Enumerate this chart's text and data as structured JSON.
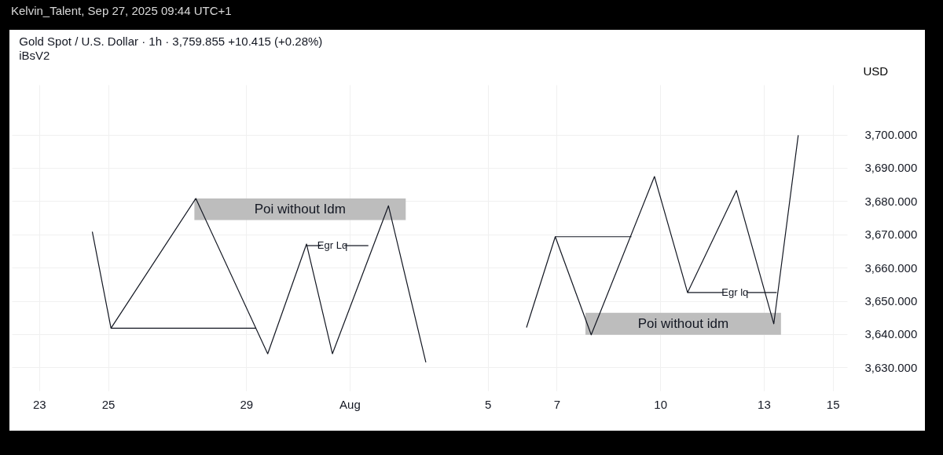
{
  "chart_data": {
    "type": "line",
    "title": "Gold Spot / U.S. Dollar · 1h · 3,759.855 +10.415 (+0.28%)",
    "subtitle": "iBsV2",
    "ylabel": "USD",
    "annotations": [
      "Kelvin_Talent, Sep 27, 2025 09:44 UTC+1",
      "Poi without Idm",
      "Poi without idm",
      {
        "text": "Egr Lq",
        "x": "2025-07-31T12:00",
        "y": 3666.6
      },
      {
        "text": "Egr lq",
        "x": "2025-08-12T04:00",
        "y": 3652.5
      }
    ],
    "series": [
      {
        "type": "area",
        "color": "#bdbdbd",
        "x": [
          "2025-07-27T12:00",
          "2025-08-02T15:00"
        ],
        "values": [
          null,
          null
        ],
        "upper": [
          3680.8,
          3680.8
        ],
        "lower": [
          3674.3,
          3674.3
        ]
      },
      {
        "type": "area",
        "color": "#bdbdbd",
        "x": [
          "2025-08-07T20:00",
          "2025-08-13T12:00"
        ],
        "values": [
          null,
          null
        ],
        "upper": [
          3646.4,
          3646.4
        ],
        "lower": [
          3639.8,
          3639.8
        ]
      },
      {
        "color": "#131722",
        "x": [
          "2025-07-24T13:00",
          "2025-07-25T02:00",
          "2025-07-27T13:00",
          "2025-07-29T15:00",
          "2025-07-30T18:00",
          "2025-07-31T12:00",
          "2025-08-02T03:00",
          "2025-08-03T05:00"
        ],
        "values": [
          3670.8,
          3641.8,
          3680.8,
          3634.1,
          3667.1,
          3634.1,
          3678.6,
          3631.5
        ]
      },
      {
        "color": "#131722",
        "x": [
          "2025-08-06T03:00",
          "2025-08-06T23:00",
          "2025-08-08T00:00",
          "2025-08-09T20:00",
          "2025-08-10T19:00",
          "2025-08-12T05:00",
          "2025-08-13T07:00",
          "2025-08-14T00:00"
        ],
        "values": [
          3642.0,
          3669.3,
          3639.8,
          3687.4,
          3652.5,
          3683.2,
          3643.1,
          3699.8
        ]
      },
      {
        "color": "#131722",
        "x": [
          "2025-07-25T02:00",
          "2025-07-29T07:00"
        ],
        "values": [
          3641.8,
          3641.8
        ]
      },
      {
        "color": "#131722",
        "x": [
          "2025-08-06T23:00",
          "2025-08-09T04:00"
        ],
        "values": [
          3669.3,
          3669.3
        ]
      },
      {
        "color": "#131722",
        "x": [
          "2025-07-30T18:00",
          "2025-08-01T13:00"
        ],
        "values": [
          3666.6,
          3666.6
        ]
      },
      {
        "color": "#131722",
        "x": [
          "2025-08-10T19:00",
          "2025-08-13T09:00"
        ],
        "values": [
          3652.5,
          3652.5
        ]
      }
    ],
    "xlim": [
      "2025-07-22T05:00",
      "2025-08-15T10:00"
    ],
    "xticks": [
      {
        "value": "2025-07-23",
        "label": "23"
      },
      {
        "value": "2025-07-25",
        "label": "25"
      },
      {
        "value": "2025-07-29",
        "label": "29"
      },
      {
        "value": "2025-08-01",
        "label": "Aug"
      },
      {
        "value": "2025-08-05",
        "label": "5"
      },
      {
        "value": "2025-08-07",
        "label": "7"
      },
      {
        "value": "2025-08-10",
        "label": "10"
      },
      {
        "value": "2025-08-13",
        "label": "13"
      },
      {
        "value": "2025-08-15",
        "label": "15"
      }
    ],
    "ylim": [
      3623,
      3715
    ],
    "yticks": [
      {
        "value": 3630,
        "label": "3,630.000"
      },
      {
        "value": 3640,
        "label": "3,640.000"
      },
      {
        "value": 3650,
        "label": "3,650.000"
      },
      {
        "value": 3660,
        "label": "3,660.000"
      },
      {
        "value": 3670,
        "label": "3,670.000"
      },
      {
        "value": 3680,
        "label": "3,680.000"
      },
      {
        "value": 3690,
        "label": "3,690.000"
      },
      {
        "value": 3700,
        "label": "3,700.000"
      }
    ],
    "grid": true,
    "legend": false,
    "marker": "none",
    "line_style": "solid"
  }
}
